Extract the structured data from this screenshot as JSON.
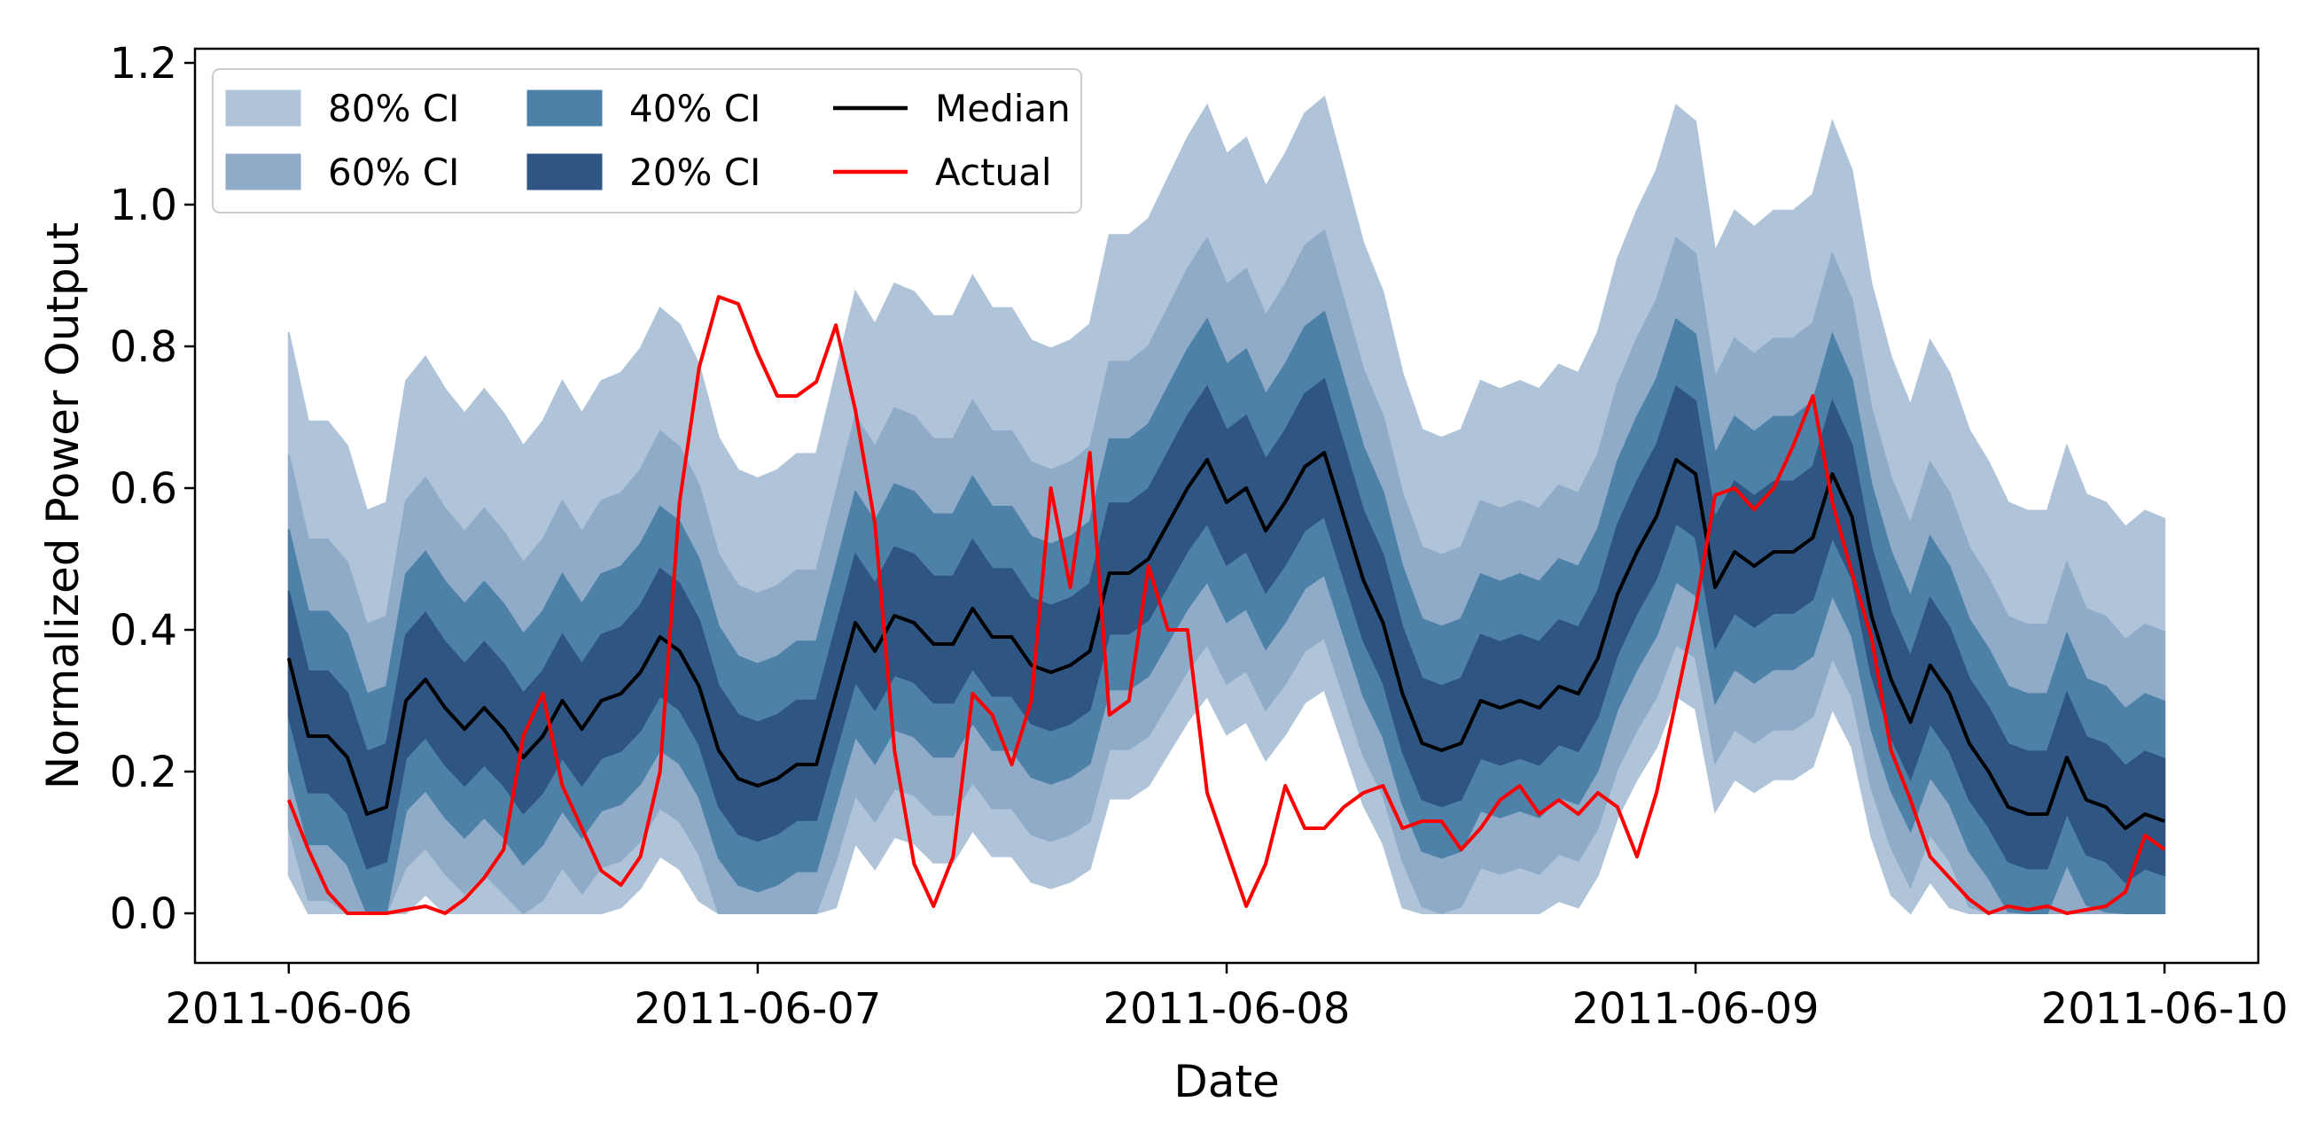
{
  "chart_data": {
    "type": "area",
    "title": "",
    "xlabel": "Date",
    "ylabel": "Normalized Power Output",
    "xlim": [
      -0.2,
      4.2
    ],
    "ylim": [
      -0.07,
      1.22
    ],
    "x_ticks": [
      {
        "value": 0,
        "label": "2011-06-06"
      },
      {
        "value": 1,
        "label": "2011-06-07"
      },
      {
        "value": 2,
        "label": "2011-06-08"
      },
      {
        "value": 3,
        "label": "2011-06-09"
      },
      {
        "value": 4,
        "label": "2011-06-10"
      }
    ],
    "y_ticks": [
      {
        "value": 0.0,
        "label": "0.0"
      },
      {
        "value": 0.2,
        "label": "0.2"
      },
      {
        "value": 0.4,
        "label": "0.4"
      },
      {
        "value": 0.6,
        "label": "0.6"
      },
      {
        "value": 0.8,
        "label": "0.8"
      },
      {
        "value": 1.0,
        "label": "1.0"
      },
      {
        "value": 1.2,
        "label": "1.2"
      }
    ],
    "x_step_days": 0.041667,
    "median": [
      0.36,
      0.25,
      0.25,
      0.22,
      0.14,
      0.15,
      0.3,
      0.33,
      0.29,
      0.26,
      0.29,
      0.26,
      0.22,
      0.25,
      0.3,
      0.26,
      0.3,
      0.31,
      0.34,
      0.39,
      0.37,
      0.32,
      0.23,
      0.19,
      0.18,
      0.19,
      0.21,
      0.21,
      0.31,
      0.41,
      0.37,
      0.42,
      0.41,
      0.38,
      0.38,
      0.43,
      0.39,
      0.39,
      0.35,
      0.34,
      0.35,
      0.37,
      0.48,
      0.48,
      0.5,
      0.55,
      0.6,
      0.64,
      0.58,
      0.6,
      0.54,
      0.58,
      0.63,
      0.65,
      0.56,
      0.47,
      0.41,
      0.31,
      0.24,
      0.23,
      0.24,
      0.3,
      0.29,
      0.3,
      0.29,
      0.32,
      0.31,
      0.36,
      0.45,
      0.51,
      0.56,
      0.64,
      0.62,
      0.46,
      0.51,
      0.49,
      0.51,
      0.51,
      0.53,
      0.62,
      0.56,
      0.42,
      0.33,
      0.27,
      0.35,
      0.31,
      0.24,
      0.2,
      0.15,
      0.14,
      0.14,
      0.22,
      0.16,
      0.15,
      0.12,
      0.14,
      0.13
    ],
    "actual": [
      0.16,
      0.09,
      0.03,
      0.0,
      0.0,
      0.0,
      0.005,
      0.01,
      0.0,
      0.02,
      0.05,
      0.09,
      0.25,
      0.31,
      0.18,
      0.12,
      0.06,
      0.04,
      0.08,
      0.2,
      0.58,
      0.77,
      0.87,
      0.86,
      0.79,
      0.73,
      0.73,
      0.75,
      0.83,
      0.71,
      0.55,
      0.23,
      0.07,
      0.01,
      0.08,
      0.31,
      0.28,
      0.21,
      0.3,
      0.6,
      0.46,
      0.65,
      0.28,
      0.3,
      0.49,
      0.4,
      0.4,
      0.17,
      0.09,
      0.01,
      0.07,
      0.18,
      0.12,
      0.12,
      0.15,
      0.17,
      0.18,
      0.12,
      0.13,
      0.13,
      0.09,
      0.12,
      0.16,
      0.18,
      0.14,
      0.16,
      0.14,
      0.17,
      0.15,
      0.08,
      0.17,
      0.3,
      0.43,
      0.59,
      0.6,
      0.57,
      0.6,
      0.66,
      0.73,
      0.58,
      0.48,
      0.39,
      0.23,
      0.16,
      0.08,
      0.05,
      0.02,
      0.0,
      0.01,
      0.005,
      0.01,
      0.0,
      0.005,
      0.01,
      0.03,
      0.11,
      0.09
    ],
    "band_offsets": {
      "ci20": [
        0.086,
        0.099
      ],
      "ci40": [
        0.165,
        0.19
      ],
      "ci60": [
        0.25,
        0.3
      ],
      "ci80": [
        0.32,
        0.48
      ]
    },
    "band_min": 0.0,
    "series": [
      {
        "name": "80% CI",
        "color": "#b0c4d9",
        "kind": "band"
      },
      {
        "name": "60% CI",
        "color": "#8fabc8",
        "kind": "band"
      },
      {
        "name": "40% CI",
        "color": "#4d81a8",
        "kind": "band"
      },
      {
        "name": "20% CI",
        "color": "#2f5583",
        "kind": "band"
      },
      {
        "name": "Median",
        "color": "#000000",
        "kind": "line"
      },
      {
        "name": "Actual",
        "color": "#ff0000",
        "kind": "line"
      }
    ],
    "legend_position": "top-left"
  }
}
